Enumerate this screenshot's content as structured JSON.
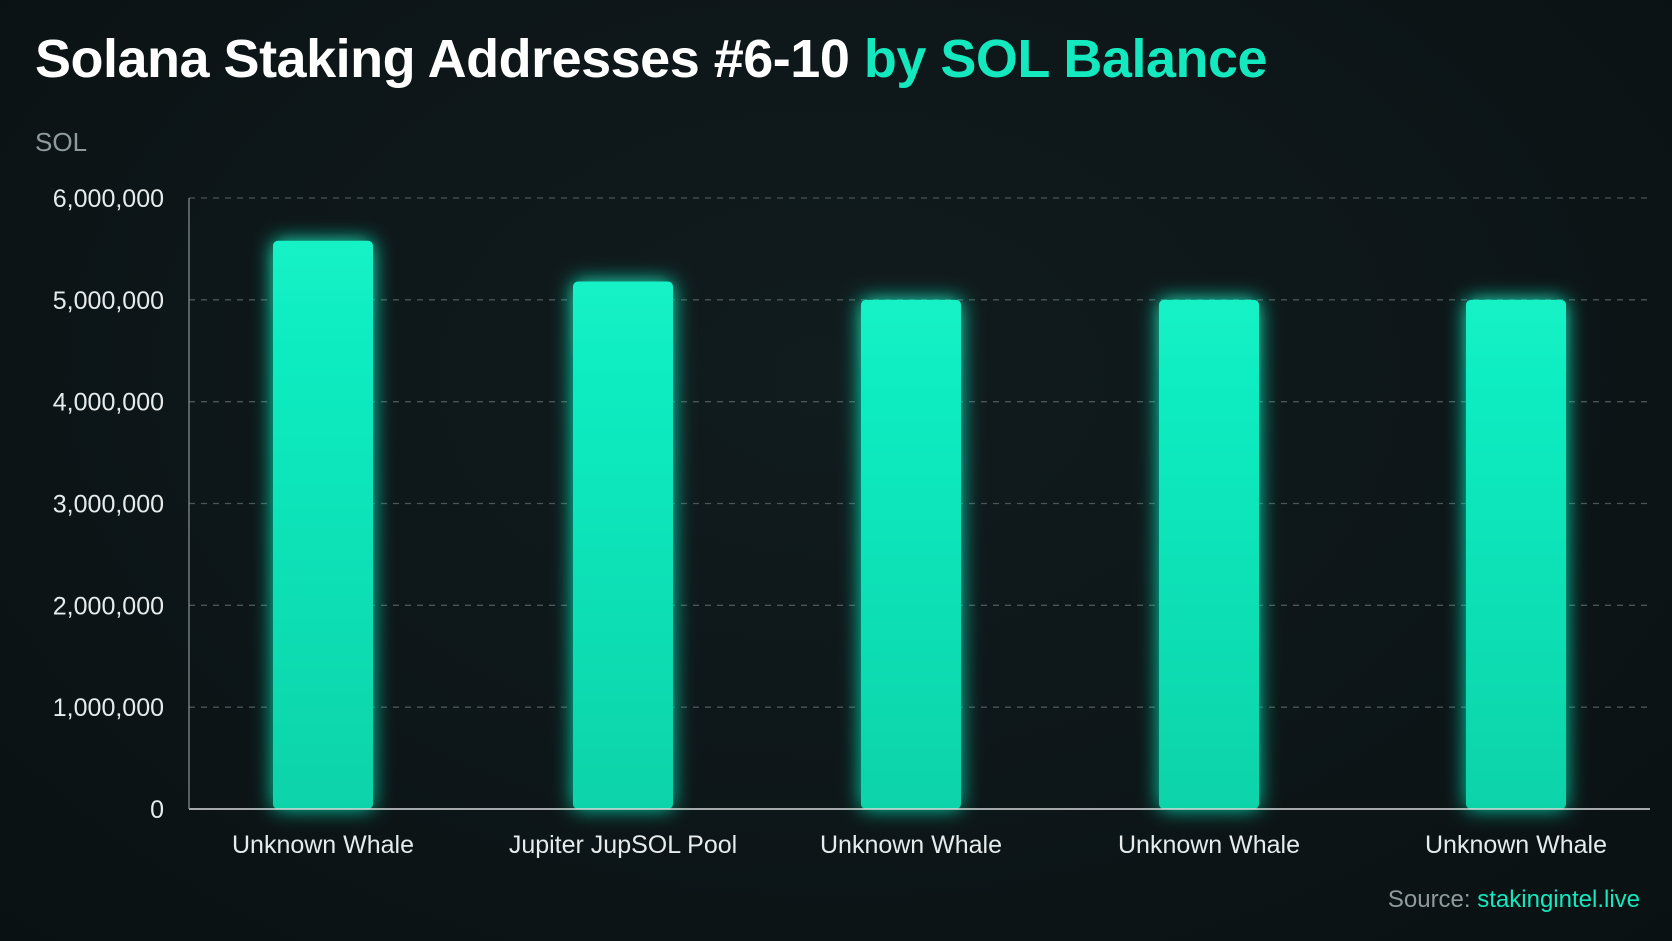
{
  "header": {
    "title_main": "Solana Staking Addresses #6-10",
    "title_accent": "by SOL Balance"
  },
  "footer": {
    "source_label": "Source:",
    "source_link": "stakingintel.live"
  },
  "colors": {
    "bar": "#14e8be",
    "accent": "#14e8be",
    "background": "#0e1719",
    "grid": "#4a5557",
    "axis_text": "#e6ebec",
    "unit_text": "#8e9a9c"
  },
  "chart_data": {
    "type": "bar",
    "title": "Solana Staking Addresses #6-10 by SOL Balance",
    "unit_label": "SOL",
    "xlabel": "",
    "ylabel": "SOL",
    "categories": [
      "Unknown Whale",
      "Jupiter JupSOL Pool",
      "Unknown Whale",
      "Unknown Whale",
      "Unknown Whale"
    ],
    "values": [
      5580000,
      5180000,
      5000000,
      5000000,
      5000000
    ],
    "ylim": [
      0,
      6000000
    ],
    "yticks": [
      0,
      1000000,
      2000000,
      3000000,
      4000000,
      5000000,
      6000000
    ],
    "ytick_labels": [
      "0",
      "1,000,000",
      "2,000,000",
      "3,000,000",
      "4,000,000",
      "5,000,000",
      "6,000,000"
    ],
    "grid": true,
    "grid_style": "dashed",
    "legend": "none"
  }
}
